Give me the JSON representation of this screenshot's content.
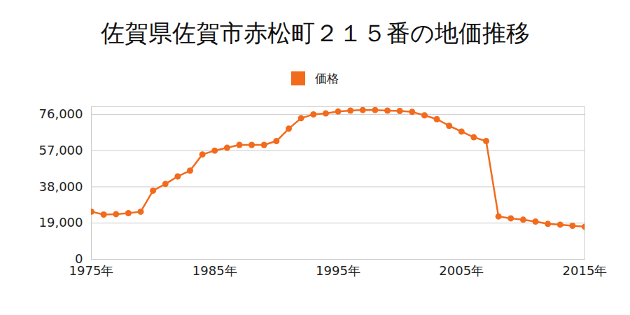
{
  "chart_data": {
    "type": "line",
    "title": "佐賀県佐賀市赤松町２１５番の地価推移",
    "x": [
      1975,
      1976,
      1977,
      1978,
      1979,
      1980,
      1981,
      1982,
      1983,
      1984,
      1985,
      1986,
      1987,
      1988,
      1989,
      1990,
      1991,
      1992,
      1993,
      1994,
      1995,
      1996,
      1997,
      1998,
      1999,
      2000,
      2001,
      2002,
      2003,
      2004,
      2005,
      2006,
      2007,
      2008,
      2009,
      2010,
      2011,
      2012,
      2013,
      2014,
      2015
    ],
    "series": [
      {
        "name": "価格",
        "color": "#f26b1d",
        "marker": "circle",
        "values": [
          25000,
          23500,
          23700,
          24200,
          25000,
          36000,
          39500,
          43500,
          46500,
          55000,
          57000,
          58500,
          60000,
          60000,
          60000,
          62000,
          68500,
          74000,
          76000,
          76500,
          77500,
          78000,
          78300,
          78300,
          78000,
          77800,
          77300,
          75500,
          73500,
          70000,
          67000,
          64000,
          62000,
          22500,
          21500,
          20800,
          19800,
          18600,
          18200,
          17600,
          17100
        ]
      }
    ],
    "xlim": [
      1975,
      2015
    ],
    "xticks": [
      {
        "value": 1975,
        "label": "1975年"
      },
      {
        "value": 1985,
        "label": "1985年"
      },
      {
        "value": 1995,
        "label": "1995年"
      },
      {
        "value": 2005,
        "label": "2005年"
      },
      {
        "value": 2015,
        "label": "2015年"
      }
    ],
    "ylim": [
      0,
      80000
    ],
    "yticks": [
      0,
      {
        "value": 19000,
        "label": "19,000"
      },
      {
        "value": 38000,
        "label": "38,000"
      },
      {
        "value": 57000,
        "label": "57,000"
      },
      {
        "value": 76000,
        "label": "76,000"
      }
    ],
    "grid": true,
    "legend": "top"
  }
}
